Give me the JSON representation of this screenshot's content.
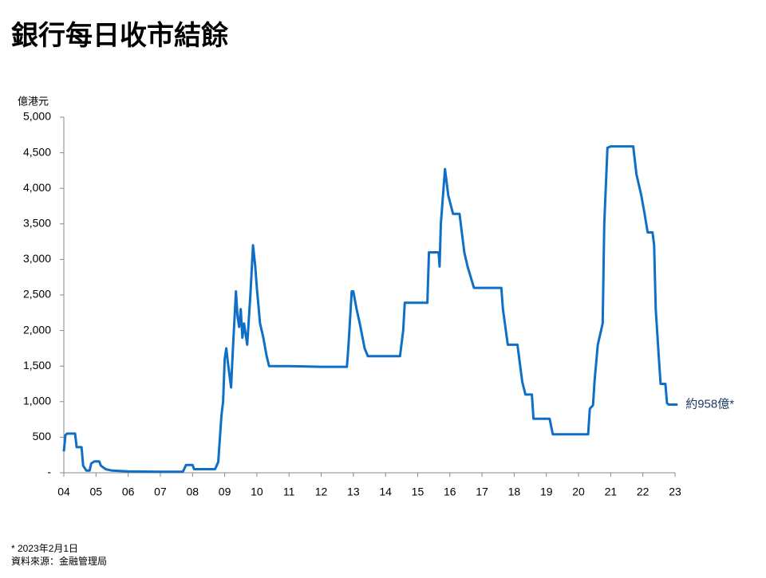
{
  "chart_data": {
    "type": "line",
    "title": "銀行每日收市結餘",
    "y_label": "億港元",
    "annotation": "約958億*",
    "footnote": "* 2023年2月1日",
    "source": "資料來源：金融管理局",
    "xlim": [
      2004,
      2023
    ],
    "xticks": [
      {
        "value": 2004,
        "label": "04"
      },
      {
        "value": 2005,
        "label": "05"
      },
      {
        "value": 2006,
        "label": "06"
      },
      {
        "value": 2007,
        "label": "07"
      },
      {
        "value": 2008,
        "label": "08"
      },
      {
        "value": 2009,
        "label": "09"
      },
      {
        "value": 2010,
        "label": "10"
      },
      {
        "value": 2011,
        "label": "11"
      },
      {
        "value": 2012,
        "label": "12"
      },
      {
        "value": 2013,
        "label": "13"
      },
      {
        "value": 2014,
        "label": "14"
      },
      {
        "value": 2015,
        "label": "15"
      },
      {
        "value": 2016,
        "label": "16"
      },
      {
        "value": 2017,
        "label": "17"
      },
      {
        "value": 2018,
        "label": "18"
      },
      {
        "value": 2019,
        "label": "19"
      },
      {
        "value": 2020,
        "label": "20"
      },
      {
        "value": 2021,
        "label": "21"
      },
      {
        "value": 2022,
        "label": "22"
      },
      {
        "value": 2023,
        "label": "23"
      }
    ],
    "ylim": [
      0,
      5000
    ],
    "yticks": [
      {
        "value": 0,
        "label": "-"
      },
      500,
      {
        "value": 1000,
        "label": "1,000"
      },
      {
        "value": 1500,
        "label": "1,500"
      },
      {
        "value": 2000,
        "label": "2,000"
      },
      {
        "value": 2500,
        "label": "2,500"
      },
      {
        "value": 3000,
        "label": "3,000"
      },
      {
        "value": 3500,
        "label": "3,500"
      },
      {
        "value": 4000,
        "label": "4,000"
      },
      {
        "value": 4500,
        "label": "4,500"
      },
      {
        "value": 5000,
        "label": "5,000"
      }
    ],
    "color": "#0f6fc6",
    "x": [
      2004.0,
      2004.05,
      2004.1,
      2004.35,
      2004.4,
      2004.55,
      2004.6,
      2004.7,
      2004.8,
      2004.85,
      2004.95,
      2005.1,
      2005.15,
      2005.3,
      2005.5,
      2006.0,
      2007.0,
      2007.7,
      2007.8,
      2008.0,
      2008.05,
      2008.7,
      2008.8,
      2008.9,
      2008.95,
      2009.0,
      2009.05,
      2009.1,
      2009.2,
      2009.25,
      2009.35,
      2009.4,
      2009.45,
      2009.5,
      2009.55,
      2009.6,
      2009.7,
      2009.8,
      2009.88,
      2009.95,
      2010.0,
      2010.1,
      2010.2,
      2010.3,
      2010.38,
      2011.0,
      2012.0,
      2012.8,
      2012.85,
      2012.95,
      2013.0,
      2013.1,
      2013.2,
      2013.35,
      2013.45,
      2014.45,
      2014.55,
      2014.6,
      2015.3,
      2015.35,
      2015.65,
      2015.68,
      2015.72,
      2015.85,
      2015.95,
      2016.1,
      2016.3,
      2016.45,
      2016.55,
      2016.75,
      2017.6,
      2017.65,
      2017.8,
      2018.1,
      2018.25,
      2018.35,
      2018.55,
      2018.6,
      2019.1,
      2019.2,
      2020.3,
      2020.35,
      2020.45,
      2020.5,
      2020.6,
      2020.75,
      2020.8,
      2020.9,
      2021.0,
      2021.7,
      2021.8,
      2021.95,
      2022.05,
      2022.15,
      2022.3,
      2022.35,
      2022.4,
      2022.5,
      2022.55,
      2022.7,
      2022.75,
      2022.8,
      2023.08
    ],
    "values": [
      300,
      530,
      550,
      550,
      360,
      360,
      100,
      30,
      30,
      130,
      160,
      160,
      100,
      50,
      30,
      20,
      15,
      15,
      110,
      110,
      50,
      50,
      150,
      800,
      1000,
      1600,
      1750,
      1550,
      1200,
      1700,
      2550,
      2200,
      2050,
      2300,
      1900,
      2100,
      1800,
      2500,
      3200,
      2900,
      2600,
      2100,
      1900,
      1650,
      1500,
      1500,
      1490,
      1490,
      1800,
      2550,
      2550,
      2300,
      2100,
      1750,
      1640,
      1640,
      2000,
      2390,
      2390,
      3100,
      3100,
      2900,
      3500,
      4270,
      3900,
      3640,
      3640,
      3100,
      2900,
      2600,
      2600,
      2300,
      1800,
      1800,
      1280,
      1100,
      1100,
      760,
      760,
      540,
      540,
      900,
      950,
      1300,
      1800,
      2100,
      3500,
      4570,
      4590,
      4590,
      4200,
      3900,
      3650,
      3380,
      3380,
      3200,
      2300,
      1600,
      1250,
      1250,
      980,
      960,
      958
    ]
  }
}
